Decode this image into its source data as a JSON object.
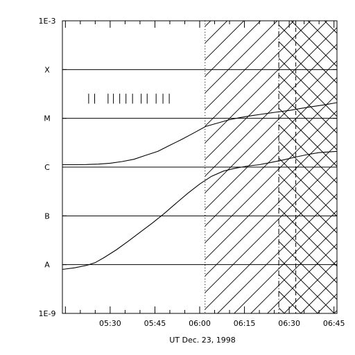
{
  "chart_data": {
    "type": "line",
    "xlabel": "UT Dec. 23, 1998",
    "ylabel": "",
    "x_ticks": [
      "05:30",
      "05:45",
      "06:00",
      "06:15",
      "06:30",
      "06:45"
    ],
    "x_tick_minutes": [
      330,
      345,
      360,
      375,
      390,
      405
    ],
    "xlim_minutes": [
      314,
      406
    ],
    "y_scale": "log",
    "ylim": [
      1e-09,
      0.001
    ],
    "y_tick_labels": [
      "1E-3",
      "X",
      "M",
      "C",
      "B",
      "A",
      "1E-9"
    ],
    "y_tick_values": [
      0.001,
      0.0001,
      1e-05,
      1e-06,
      1e-07,
      1e-08,
      1e-09
    ],
    "grid_lines_y": [
      0.0001,
      1e-05,
      1e-06,
      1e-07,
      1e-08
    ],
    "series": [
      {
        "color": "#000000",
        "points": [
          [
            314,
            1.12e-06
          ],
          [
            318,
            1.12e-06
          ],
          [
            322,
            1.13e-06
          ],
          [
            326,
            1.15e-06
          ],
          [
            330,
            1.2e-06
          ],
          [
            334,
            1.3e-06
          ],
          [
            338,
            1.45e-06
          ],
          [
            342,
            1.75e-06
          ],
          [
            346,
            2.1e-06
          ],
          [
            350,
            2.8e-06
          ],
          [
            354,
            3.7e-06
          ],
          [
            358,
            5e-06
          ],
          [
            362,
            6.8e-06
          ],
          [
            366,
            8e-06
          ],
          [
            370,
            9.4e-06
          ],
          [
            374,
            1.05e-05
          ],
          [
            378,
            1.15e-05
          ],
          [
            382,
            1.25e-05
          ],
          [
            386,
            1.35e-05
          ],
          [
            390,
            1.45e-05
          ],
          [
            394,
            1.6e-05
          ],
          [
            398,
            1.75e-05
          ],
          [
            402,
            1.9e-05
          ],
          [
            406,
            2.1e-05
          ]
        ]
      },
      {
        "color": "#000000",
        "points": [
          [
            314,
            8e-09
          ],
          [
            318,
            8.6e-09
          ],
          [
            322,
            9.6e-09
          ],
          [
            325,
            1.1e-08
          ],
          [
            328,
            1.4e-08
          ],
          [
            332,
            2e-08
          ],
          [
            336,
            3e-08
          ],
          [
            340,
            4.6e-08
          ],
          [
            344,
            7e-08
          ],
          [
            348,
            1.1e-07
          ],
          [
            352,
            1.8e-07
          ],
          [
            356,
            2.9e-07
          ],
          [
            360,
            4.5e-07
          ],
          [
            364,
            6.5e-07
          ],
          [
            368,
            8.3e-07
          ],
          [
            372,
            9.5e-07
          ],
          [
            376,
            1.05e-06
          ],
          [
            380,
            1.12e-06
          ],
          [
            384,
            1.25e-06
          ],
          [
            388,
            1.4e-06
          ],
          [
            392,
            1.6e-06
          ],
          [
            396,
            1.8e-06
          ],
          [
            400,
            1.98e-06
          ],
          [
            406,
            2.1e-06
          ]
        ]
      }
    ],
    "event_ticks_minutes": [
      322.8,
      324.8,
      329.3,
      331.1,
      333.2,
      335.3,
      337.5,
      340.4,
      342.4,
      345.4,
      347.7,
      349.8
    ],
    "event_tick_value_range": [
      2e-05,
      3.2e-05
    ],
    "markers": [
      {
        "x": 361.8,
        "style": "dotted"
      },
      {
        "x": 386.5,
        "style": "dash-dot"
      },
      {
        "x": 392.2,
        "style": "dashed"
      }
    ],
    "hatch_regions": [
      {
        "from": 361.8,
        "to": 406,
        "direction": "forward"
      },
      {
        "from": 386.5,
        "to": 406,
        "direction": "backward"
      }
    ]
  }
}
